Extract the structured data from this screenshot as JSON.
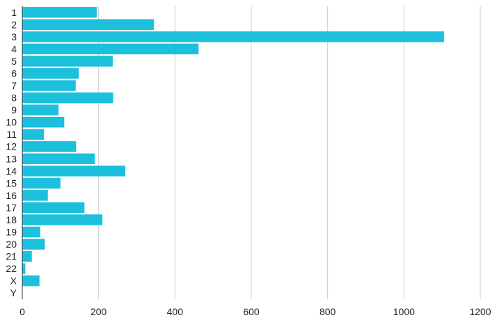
{
  "chart_data": {
    "type": "bar",
    "orientation": "horizontal",
    "categories": [
      "1",
      "2",
      "3",
      "4",
      "5",
      "6",
      "7",
      "8",
      "9",
      "10",
      "11",
      "12",
      "13",
      "14",
      "15",
      "16",
      "17",
      "18",
      "19",
      "20",
      "21",
      "22",
      "X",
      "Y"
    ],
    "values": [
      195,
      345,
      1105,
      462,
      237,
      148,
      140,
      238,
      95,
      110,
      57,
      141,
      190,
      270,
      100,
      67,
      163,
      210,
      47,
      59,
      25,
      8,
      45,
      0
    ],
    "xlim": [
      0,
      1200
    ],
    "x_ticks": [
      0,
      200,
      400,
      600,
      800,
      1000,
      1200
    ],
    "title": "",
    "xlabel": "",
    "ylabel": "",
    "grid": "vertical",
    "legend": "none",
    "bar_color": "#1dc0dc"
  }
}
